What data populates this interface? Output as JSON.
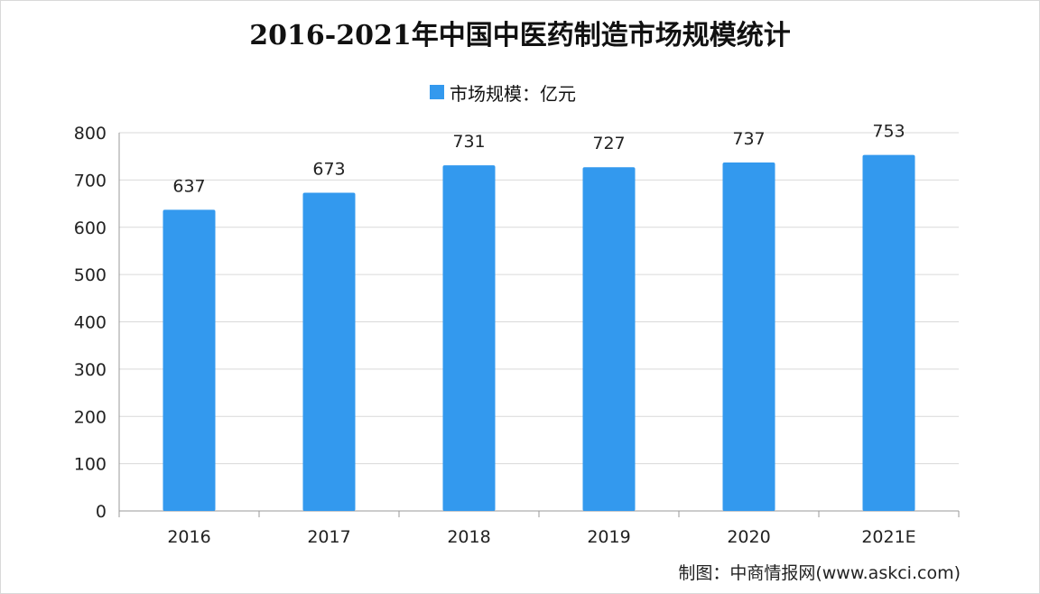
{
  "chart_data": {
    "type": "bar",
    "title": "2016-2021年中国中医药制造市场规模统计",
    "legend_position": "top-center",
    "series": [
      {
        "name": "市场规模：亿元",
        "color": "#3399ee",
        "values": [
          637,
          673,
          731,
          727,
          737,
          753
        ]
      }
    ],
    "categories": [
      "2016",
      "2017",
      "2018",
      "2019",
      "2020",
      "2021E"
    ],
    "ylim": [
      0,
      800
    ],
    "yticks": [
      0,
      100,
      200,
      300,
      400,
      500,
      600,
      700,
      800
    ],
    "grid": true,
    "xlabel": "",
    "ylabel": ""
  },
  "source": "制图：中商情报网(www.askci.com)",
  "colors": {
    "bar": "#3399ee",
    "grid": "#d9d9d9",
    "axis": "#999999"
  }
}
